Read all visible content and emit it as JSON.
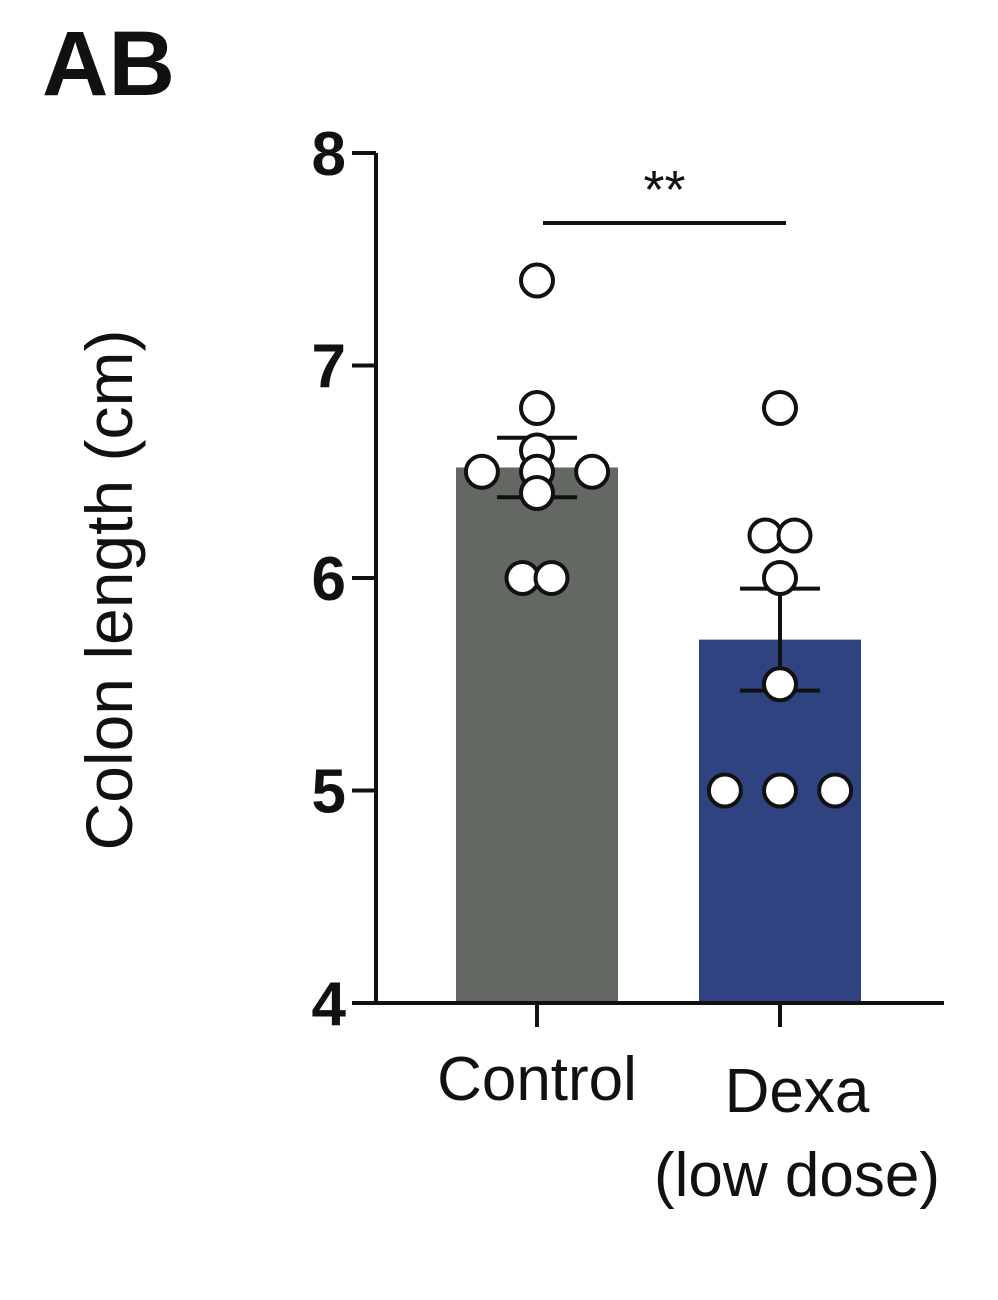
{
  "panel_label": "AB",
  "chart_data": {
    "type": "bar",
    "title": "",
    "xlabel": "",
    "ylabel": "Colon length (cm)",
    "ylim": [
      4,
      8
    ],
    "yticks": [
      4,
      5,
      6,
      7,
      8
    ],
    "categories": [
      {
        "label_lines": [
          "Control"
        ]
      },
      {
        "label_lines": [
          "Dexa",
          "(low dose)"
        ]
      }
    ],
    "values": [
      6.52,
      5.71
    ],
    "error_bars": [
      {
        "low": 6.38,
        "high": 6.66
      },
      {
        "low": 5.47,
        "high": 5.95
      }
    ],
    "points": [
      [
        7.4,
        6.8,
        6.6,
        6.5,
        6.5,
        6.5,
        6.4,
        6.0,
        6.0
      ],
      [
        6.8,
        6.2,
        6.2,
        6.0,
        5.5,
        5.0,
        5.0,
        5.0
      ]
    ],
    "bar_colors": [
      "#646862",
      "#2e4380"
    ],
    "significance": {
      "label": "**",
      "between": [
        0,
        1
      ]
    }
  }
}
